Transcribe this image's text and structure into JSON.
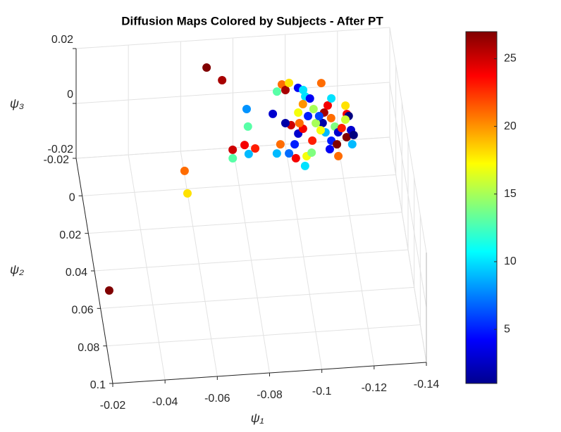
{
  "chart_data": {
    "type": "scatter3d",
    "title": "Diffusion Maps Colored by Subjects - After PT",
    "xlabel": "ψ₁",
    "ylabel": "ψ₂",
    "zlabel": "ψ₃",
    "xlim": [
      -0.14,
      -0.02
    ],
    "ylim": [
      -0.02,
      0.1
    ],
    "zlim": [
      -0.02,
      0.02
    ],
    "xticks": [
      -0.02,
      -0.04,
      -0.06,
      -0.08,
      -0.1,
      -0.12,
      -0.14
    ],
    "yticks": [
      -0.02,
      0,
      0.02,
      0.04,
      0.06,
      0.08,
      0.1
    ],
    "zticks": [
      -0.02,
      0,
      0.02
    ],
    "grid": true,
    "colormap": "jet",
    "clim": [
      1,
      27
    ],
    "cticks": [
      5,
      10,
      15,
      20,
      25
    ],
    "x": [
      -0.0699,
      -0.075,
      -0.021,
      -0.0569,
      -0.0566,
      -0.0764,
      -0.0759,
      -0.0812,
      -0.0822,
      -0.085,
      -0.0842,
      -0.0836,
      -0.0938,
      -0.0959,
      -0.0982,
      -0.0992,
      -0.101,
      -0.1041,
      -0.1059,
      -0.1063,
      -0.1132,
      -0.0948,
      -0.0929,
      -0.0975,
      -0.1002,
      -0.0998,
      -0.104,
      -0.1028,
      -0.1061,
      -0.1071,
      -0.1022,
      -0.1043,
      -0.1,
      -0.098,
      -0.1035,
      -0.1058,
      -0.1088,
      -0.1095,
      -0.1133,
      -0.1151,
      -0.1156,
      -0.1165,
      -0.1174,
      -0.1121,
      -0.1126,
      -0.1143,
      -0.1132,
      -0.1162,
      -0.116,
      -0.1218,
      -0.1218,
      -0.1224,
      -0.119,
      -0.1224,
      -0.122,
      -0.1203,
      -0.1109,
      -0.1095,
      -0.107,
      -0.1033,
      -0.1231,
      -0.1209,
      -0.1169,
      -0.1112
    ],
    "y": [
      -0.0198,
      -0.0126,
      0.0798,
      0.0194,
      0.0314,
      0.01,
      0.0145,
      0.0079,
      0.0128,
      0.0101,
      -0.011,
      -0.0017,
      -0.0075,
      -0.0119,
      -0.0155,
      -0.0124,
      -0.016,
      -0.0131,
      -0.0118,
      -0.0083,
      -0.0148,
      0.0088,
      0.0135,
      0.0139,
      0.0093,
      0.0167,
      0.016,
      0.0211,
      0.0143,
      0.008,
      0.0038,
      0.0014,
      -0.0009,
      -0.0022,
      -0.0073,
      -0.0116,
      -0.0143,
      -0.0086,
      -0.0064,
      -0.01,
      -0.0032,
      0.0014,
      0.0045,
      -0.0009,
      0.0041,
      0.0087,
      0.0131,
      0.0108,
      0.0171,
      -0.0093,
      -0.0048,
      -0.0037,
      0.0024,
      0.0038,
      0.0113,
      0.0074,
      0.0028,
      -0.0011,
      -0.0051,
      -0.0017,
      0.0065,
      -0.0019,
      -0.0136,
      -0.0047
    ],
    "z": [
      0.01,
      0.01,
      0,
      0,
      0,
      0,
      0,
      0,
      0,
      0,
      0,
      0,
      0,
      0.005,
      0.005,
      0.005,
      0.005,
      0.005,
      0.005,
      0.005,
      0.005,
      0,
      0,
      0,
      0,
      0,
      0,
      0,
      0,
      0,
      0,
      0,
      0,
      0,
      0,
      0,
      0,
      0,
      0,
      0,
      0,
      0,
      0,
      0,
      0,
      0,
      0,
      0,
      0,
      0,
      0,
      0,
      0,
      0,
      0,
      0,
      0,
      0,
      0,
      0,
      0,
      0,
      0,
      0
    ],
    "c": [
      27,
      26,
      27,
      21,
      18,
      25,
      13,
      24,
      9,
      23,
      8,
      13,
      3,
      13,
      21,
      26,
      18,
      4,
      10,
      10,
      21,
      21,
      9,
      7,
      5,
      24,
      17,
      10,
      14,
      23,
      3,
      24,
      25,
      2,
      17,
      20,
      4,
      15,
      26,
      24,
      21,
      14,
      3,
      2,
      9,
      5,
      4,
      27,
      21,
      18,
      24,
      1,
      23,
      3,
      9,
      27,
      17,
      15,
      5,
      21,
      1,
      16,
      10,
      6
    ]
  }
}
